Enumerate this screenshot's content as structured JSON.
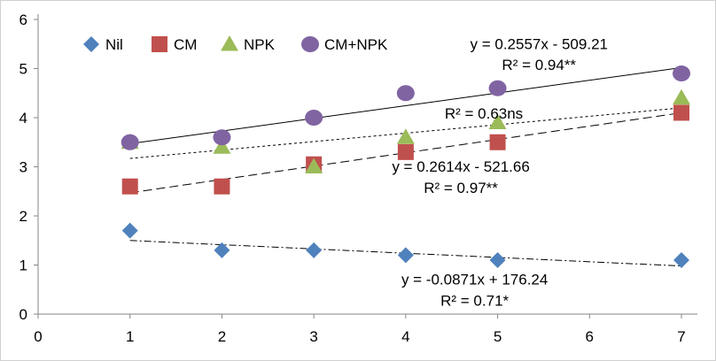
{
  "chart_data": {
    "type": "scatter",
    "title": "",
    "xlabel": "",
    "ylabel": "",
    "xlim": [
      0,
      7
    ],
    "ylim": [
      0,
      6
    ],
    "x_ticks": [
      "0",
      "1",
      "2",
      "3",
      "4",
      "5",
      "6",
      "7"
    ],
    "y_ticks": [
      "0",
      "1",
      "2",
      "3",
      "4",
      "5",
      "6"
    ],
    "grid": false,
    "legend_position": "top-left",
    "series": [
      {
        "name": "Nil",
        "marker": "diamond",
        "color": "#4F81BD",
        "x": [
          1,
          2,
          3,
          4,
          5,
          7
        ],
        "y": [
          1.7,
          1.3,
          1.3,
          1.2,
          1.1,
          1.1
        ],
        "trendline": {
          "style": "dash-dot",
          "x": [
            1,
            7
          ],
          "y": [
            1.5,
            0.98
          ]
        }
      },
      {
        "name": "CM",
        "marker": "square",
        "color": "#C0504D",
        "x": [
          1,
          2,
          3,
          4,
          5,
          7
        ],
        "y": [
          2.6,
          2.6,
          3.05,
          3.3,
          3.5,
          4.1
        ],
        "trendline": {
          "style": "long-dash",
          "x": [
            1,
            7
          ],
          "y": [
            2.47,
            4.1
          ]
        }
      },
      {
        "name": "NPK",
        "marker": "triangle",
        "color": "#9BBB59",
        "x": [
          1,
          2,
          3,
          4,
          5,
          7
        ],
        "y": [
          3.5,
          3.4,
          3.0,
          3.6,
          3.9,
          4.4
        ],
        "trendline": {
          "style": "dotted",
          "x": [
            1,
            7
          ],
          "y": [
            3.17,
            4.2
          ]
        }
      },
      {
        "name": "CM+NPK",
        "marker": "circle",
        "color": "#8064A2",
        "x": [
          1,
          2,
          3,
          4,
          5,
          7
        ],
        "y": [
          3.5,
          3.6,
          4.0,
          4.5,
          4.6,
          4.9
        ],
        "trendline": {
          "style": "solid",
          "x": [
            1,
            7
          ],
          "y": [
            3.47,
            5.02
          ]
        }
      }
    ],
    "annotations": [
      {
        "text": "y = 0.2557x - 509.21",
        "x": 5.45,
        "y": 5.4
      },
      {
        "text": "R² = 0.94**",
        "x": 5.45,
        "y": 4.97
      },
      {
        "text": "R² = 0.63ns",
        "x": 4.85,
        "y": 3.98
      },
      {
        "text": "y = 0.2614x - 521.66",
        "x": 4.6,
        "y": 2.9
      },
      {
        "text": "R² = 0.97**",
        "x": 4.6,
        "y": 2.47
      },
      {
        "text": "y = -0.0871x + 176.24",
        "x": 4.75,
        "y": 0.6
      },
      {
        "text": "R² = 0.71*",
        "x": 4.75,
        "y": 0.17
      }
    ]
  }
}
